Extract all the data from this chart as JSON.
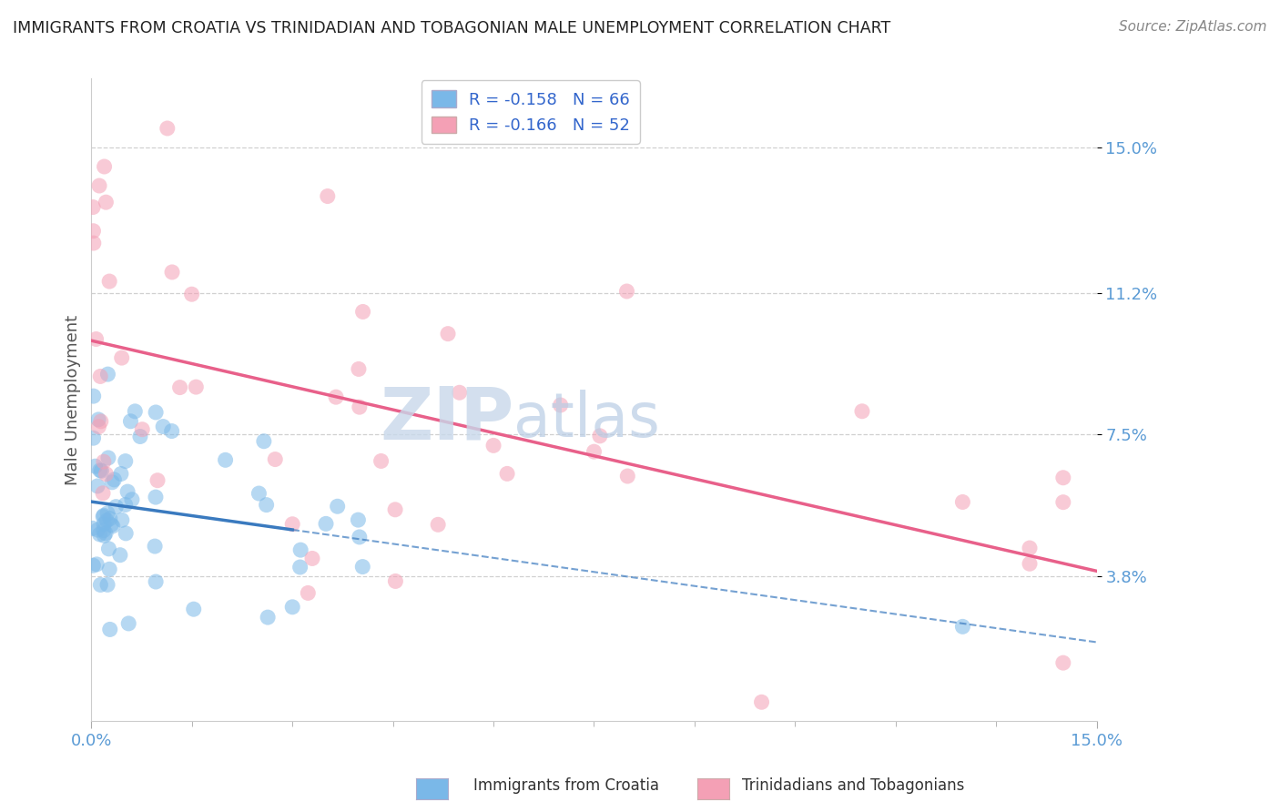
{
  "title": "IMMIGRANTS FROM CROATIA VS TRINIDADIAN AND TOBAGONIAN MALE UNEMPLOYMENT CORRELATION CHART",
  "source": "Source: ZipAtlas.com",
  "ylabel": "Male Unemployment",
  "x_min": 0.0,
  "x_max": 0.15,
  "y_min": 0.0,
  "y_max": 0.168,
  "y_ticks": [
    0.038,
    0.075,
    0.112,
    0.15
  ],
  "y_tick_labels": [
    "3.8%",
    "7.5%",
    "11.2%",
    "15.0%"
  ],
  "x_ticks": [
    0.0,
    0.15
  ],
  "x_tick_labels": [
    "0.0%",
    "15.0%"
  ],
  "series1_label": "Immigrants from Croatia",
  "series2_label": "Trinidadians and Tobagonians",
  "series1_color": "#7ab8e8",
  "series2_color": "#f4a0b5",
  "series1_line_color": "#3a7abf",
  "series2_line_color": "#e8608a",
  "series1_R": -0.158,
  "series1_N": 66,
  "series2_R": -0.166,
  "series2_N": 52,
  "watermark_text": "ZIP",
  "watermark_text2": "atlas",
  "background_color": "#ffffff",
  "grid_color": "#d0d0d0",
  "title_color": "#222222",
  "axis_label_color": "#555555",
  "tick_label_color": "#5b9bd5",
  "source_color": "#888888",
  "legend_R1": "R = -0.158",
  "legend_N1": "N = 66",
  "legend_R2": "R = -0.166",
  "legend_N2": "N = 52"
}
